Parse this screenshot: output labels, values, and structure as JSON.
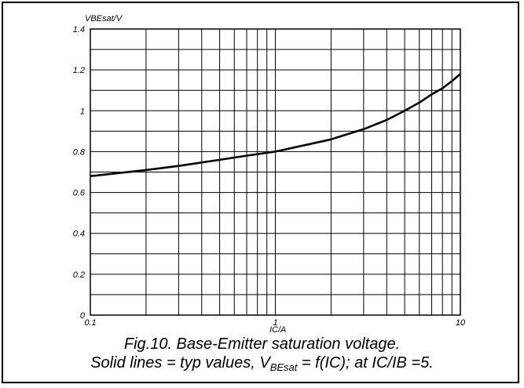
{
  "chart_data": {
    "type": "line",
    "xscale": "log",
    "xlim": [
      0.1,
      10
    ],
    "ylim": [
      0,
      1.4
    ],
    "xlabel": "IC/A",
    "ylabel": "VBEsat/V",
    "grid": true,
    "x_ticks": [
      "0.1",
      "1",
      "10"
    ],
    "y_ticks": [
      "0",
      "0.2",
      "0.4",
      "0.6",
      "0.8",
      "1",
      "1.2",
      "1.4"
    ],
    "series": [
      {
        "x": [
          0.1,
          0.2,
          0.3,
          0.5,
          0.7,
          1.0,
          1.5,
          2.0,
          3.0,
          4.0,
          5.0,
          6.0,
          7.0,
          8.0,
          9.0,
          10.0
        ],
        "y": [
          0.68,
          0.71,
          0.73,
          0.76,
          0.78,
          0.8,
          0.835,
          0.86,
          0.91,
          0.955,
          1.0,
          1.04,
          1.08,
          1.11,
          1.145,
          1.18
        ]
      }
    ]
  },
  "caption": {
    "line1": "Fig.10.   Base-Emitter saturation voltage.",
    "line2_prefix": "Solid lines = typ values, V",
    "line2_sub": "BEsat",
    "line2_suffix": " = f(IC); at IC/IB =5."
  }
}
